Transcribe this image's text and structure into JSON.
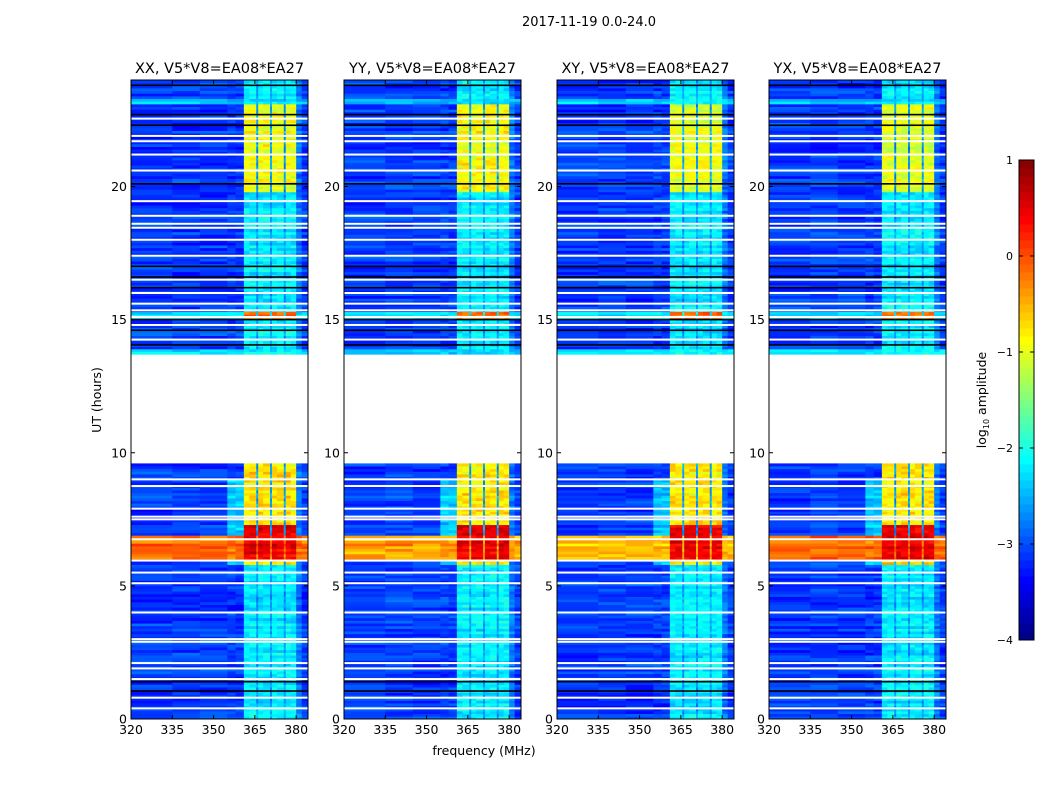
{
  "chart_data": {
    "type": "heatmap",
    "title": "2017-11-19 0.0-24.0",
    "xlabel": "frequency (MHz)",
    "ylabel": "UT (hours)",
    "xlim": [
      320,
      384.3
    ],
    "ylim": [
      0,
      24
    ],
    "xticks": [
      "320",
      "335",
      "350",
      "365",
      "380"
    ],
    "xtick_values": [
      320,
      335,
      350,
      365,
      380
    ],
    "yticks": [
      "0",
      "5",
      "10",
      "15",
      "20"
    ],
    "ytick_values": [
      0,
      5,
      10,
      15,
      20
    ],
    "panels": [
      {
        "title": "XX, V5*V8=EA08*EA27",
        "pol": "XX",
        "stripe_level": -0.2
      },
      {
        "title": "YY, V5*V8=EA08*EA27",
        "pol": "YY",
        "stripe_level": -0.5
      },
      {
        "title": "XY, V5*V8=EA08*EA27",
        "pol": "XY",
        "stripe_level": -0.6
      },
      {
        "title": "YX, V5*V8=EA08*EA27",
        "pol": "YX",
        "stripe_level": -0.25
      }
    ],
    "colorbar": {
      "label": "log",
      "label_sub": "10",
      "label_rest": " amplitude",
      "colormap": "jet",
      "range": [
        -4,
        1
      ],
      "ticks": [
        "1",
        "0",
        "−1",
        "−2",
        "−3",
        "−4"
      ],
      "tick_values": [
        1,
        0,
        -1,
        -2,
        -3,
        -4
      ]
    },
    "features": {
      "background_level": -3.1,
      "rfi_columns_mhz": [
        [
          361,
          365.5
        ],
        [
          366.2,
          370.5
        ],
        [
          371.2,
          375.5
        ],
        [
          376.2,
          380
        ]
      ],
      "rfi_level": -2.2,
      "data_gap_hours": [
        9.62,
        13.68
      ],
      "strong_rfi_hours": [
        19.8,
        23.15
      ],
      "strong_rfi_level": -1.0,
      "morning_rfi_hours": [
        5.75,
        9.6
      ],
      "morning_rfi_level": -0.9,
      "peak_hours": [
        6.0,
        7.3
      ],
      "peak_level": 0.5,
      "broadband_stripe_hours": [
        6.0,
        6.9
      ],
      "flagged_white_hours": [
        22.55,
        21.9,
        21.7,
        21.2,
        20.6,
        19.45,
        18.9,
        18.6,
        18.45,
        18.0,
        17.4,
        16.5,
        16.0,
        15.6,
        15.35,
        15.1,
        14.8,
        14.25,
        9.0,
        8.75,
        7.9,
        7.6,
        7.5,
        6.75,
        5.95,
        5.5,
        5.1,
        4.0,
        3.0,
        2.9,
        2.1,
        1.9,
        1.5,
        0.8,
        0.4
      ],
      "flagged_black_hours": [
        23.8,
        22.7,
        22.3,
        20.1,
        17.0,
        16.6,
        16.2,
        15.0,
        14.6,
        14.05,
        1.4,
        1.05
      ]
    }
  }
}
